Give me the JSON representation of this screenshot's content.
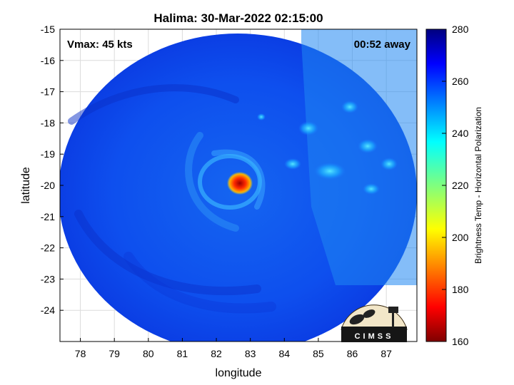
{
  "chart_data": {
    "type": "heatmap",
    "title": "Halima: 30-Mar-2022 02:15:00",
    "xlabel": "longitude",
    "ylabel": "latitude",
    "xlim": [
      77.4,
      87.9
    ],
    "ylim": [
      -25,
      -15
    ],
    "xticks": [
      78,
      79,
      80,
      81,
      82,
      83,
      84,
      85,
      86,
      87
    ],
    "yticks": [
      -15,
      -16,
      -17,
      -18,
      -19,
      -20,
      -21,
      -22,
      -23,
      -24
    ],
    "grid": true,
    "annotations": {
      "top_left": "Vmax: 45 kts",
      "top_right": "00:52 away"
    },
    "colorbar": {
      "label": "Brightness Temp - Horizontal Polarization",
      "range": [
        160,
        280
      ],
      "ticks": [
        280,
        260,
        240,
        220,
        200,
        180,
        160
      ],
      "colormap": "jet"
    },
    "swath": {
      "center": [
        82.6,
        -20.9
      ],
      "background_value": 256,
      "seam_longitude_note": "two overpasses joined along a diagonal edge"
    },
    "features": [
      {
        "name": "eye-cold-core",
        "lon": 82.6,
        "lat": -20.0,
        "value": 165
      },
      {
        "name": "inner-ring",
        "lon": 82.3,
        "lat": -19.9,
        "value": 240
      },
      {
        "name": "convection-1",
        "lon": 84.6,
        "lat": -18.4,
        "value": 228
      },
      {
        "name": "convection-2",
        "lon": 85.2,
        "lat": -19.4,
        "value": 226
      },
      {
        "name": "convection-3",
        "lon": 85.7,
        "lat": -17.3,
        "value": 232
      }
    ],
    "logo_text": "CIMSS"
  }
}
